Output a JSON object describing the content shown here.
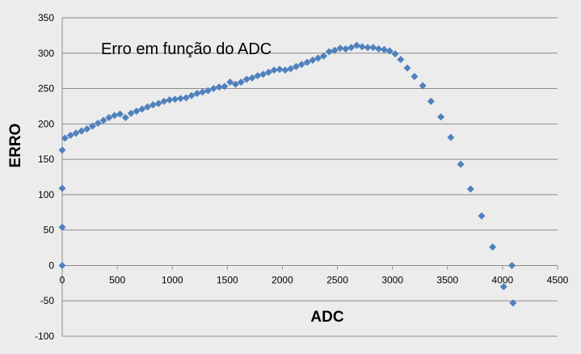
{
  "chart_data": {
    "type": "scatter",
    "title": "Erro em função do ADC",
    "xlabel": "ADC",
    "ylabel": "ERRO",
    "xlim": [
      0,
      4500
    ],
    "ylim": [
      -100,
      350
    ],
    "x_ticks": [
      0,
      500,
      1000,
      1500,
      2000,
      2500,
      3000,
      3500,
      4000,
      4500
    ],
    "y_ticks": [
      -100,
      -50,
      0,
      50,
      100,
      150,
      200,
      250,
      300,
      350
    ],
    "grid": "horizontal",
    "legend": "none",
    "marker": "diamond",
    "marker_color": "#4f81bd",
    "series": [
      {
        "x": [
          0,
          0,
          0,
          0,
          25,
          75,
          125,
          175,
          225,
          275,
          325,
          375,
          425,
          475,
          525,
          575,
          625,
          675,
          725,
          775,
          825,
          875,
          925,
          975,
          1025,
          1075,
          1125,
          1175,
          1225,
          1275,
          1325,
          1375,
          1425,
          1475,
          1525,
          1575,
          1625,
          1675,
          1725,
          1775,
          1825,
          1875,
          1925,
          1975,
          2025,
          2075,
          2125,
          2175,
          2225,
          2275,
          2325,
          2375,
          2425,
          2475,
          2525,
          2575,
          2625,
          2675,
          2725,
          2775,
          2825,
          2875,
          2925,
          2975,
          3025,
          3075,
          3135,
          3200,
          3275,
          3350,
          3440,
          3530,
          3620,
          3710,
          3810,
          3910,
          4010,
          4085,
          4095
        ],
        "y": [
          0,
          54,
          109,
          163,
          180,
          184,
          187,
          190,
          193,
          197,
          201,
          205,
          209,
          212,
          214,
          209,
          215,
          218,
          221,
          224,
          227,
          229,
          232,
          234,
          235,
          236,
          237,
          240,
          243,
          245,
          247,
          250,
          252,
          253,
          259,
          256,
          259,
          263,
          265,
          268,
          270,
          273,
          276,
          277,
          276,
          278,
          281,
          284,
          287,
          290,
          293,
          296,
          302,
          304,
          307,
          306,
          308,
          311,
          309,
          308,
          308,
          306,
          305,
          303,
          299,
          291,
          279,
          267,
          254,
          232,
          210,
          181,
          143,
          108,
          70,
          26,
          -30,
          0,
          -53
        ]
      }
    ]
  }
}
